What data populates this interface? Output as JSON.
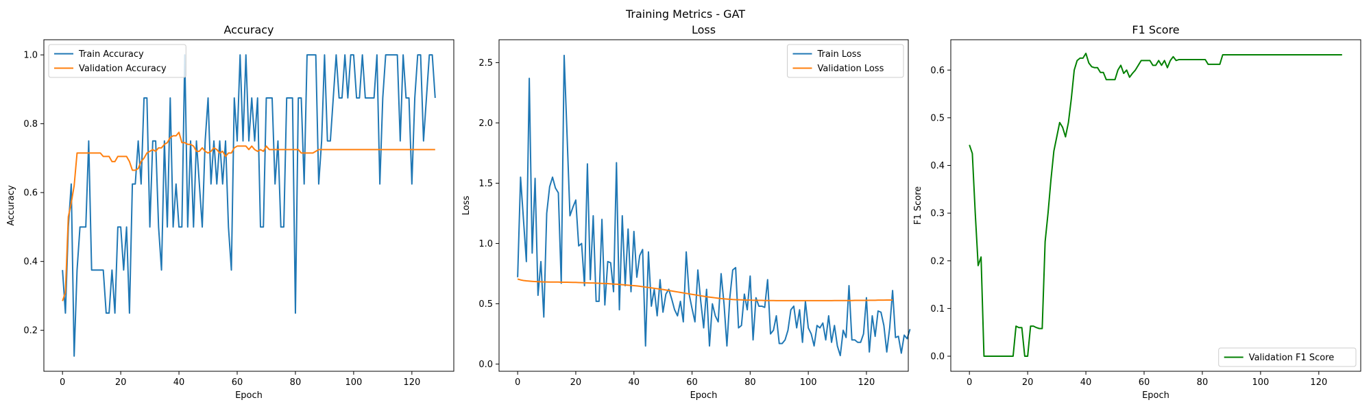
{
  "figure": {
    "suptitle": "Training Metrics - GAT"
  },
  "colors": {
    "blue": "#1f77b4",
    "orange": "#ff7f0e",
    "green": "#008000"
  },
  "chart_data": [
    {
      "type": "line",
      "title": "Accuracy",
      "xlabel": "Epoch",
      "ylabel": "Accuracy",
      "xlim": [
        -6.4,
        134.4
      ],
      "ylim": [
        0.081,
        1.044
      ],
      "xticks": [
        0,
        20,
        40,
        60,
        80,
        100,
        120
      ],
      "yticks": [
        0.2,
        0.4,
        0.6,
        0.8,
        1.0
      ],
      "ytick_labels": [
        "0.2",
        "0.4",
        "0.6",
        "0.8",
        "1.0"
      ],
      "legend": "top-left",
      "series": [
        {
          "name": "Train Accuracy",
          "color": "#1f77b4",
          "values": [
            0.375,
            0.25,
            0.5,
            0.625,
            0.125,
            0.375,
            0.5,
            0.5,
            0.5,
            0.75,
            0.375,
            0.375,
            0.375,
            0.375,
            0.375,
            0.25,
            0.25,
            0.375,
            0.25,
            0.5,
            0.5,
            0.375,
            0.5,
            0.25,
            0.625,
            0.625,
            0.75,
            0.625,
            0.875,
            0.875,
            0.5,
            0.75,
            0.75,
            0.5,
            0.375,
            0.75,
            0.5,
            0.875,
            0.5,
            0.625,
            0.5,
            0.5,
            1.0,
            0.5,
            0.75,
            0.5,
            0.75,
            0.625,
            0.5,
            0.75,
            0.875,
            0.625,
            0.75,
            0.625,
            0.75,
            0.625,
            0.75,
            0.5,
            0.375,
            0.875,
            0.75,
            1.0,
            0.75,
            1.0,
            0.75,
            0.875,
            0.75,
            0.875,
            0.5,
            0.5,
            0.875,
            0.875,
            0.875,
            0.625,
            0.75,
            0.5,
            0.5,
            0.875,
            0.875,
            0.875,
            0.25,
            0.875,
            0.875,
            0.625,
            1.0,
            1.0,
            1.0,
            1.0,
            0.625,
            0.75,
            1.0,
            0.75,
            0.75,
            0.875,
            1.0,
            0.875,
            0.875,
            1.0,
            0.875,
            1.0,
            1.0,
            0.875,
            0.875,
            1.0,
            0.875,
            0.875,
            0.875,
            0.875,
            1.0,
            0.625,
            0.875,
            1.0,
            1.0,
            1.0,
            1.0,
            1.0,
            0.75,
            1.0,
            0.875,
            0.875,
            0.625,
            0.875,
            1.0,
            1.0,
            0.75,
            0.875,
            1.0,
            1.0,
            0.875
          ]
        },
        {
          "name": "Validation Accuracy",
          "color": "#ff7f0e",
          "values": [
            0.285,
            0.31,
            0.53,
            0.57,
            0.62,
            0.715,
            0.715,
            0.715,
            0.715,
            0.715,
            0.715,
            0.715,
            0.715,
            0.715,
            0.705,
            0.705,
            0.705,
            0.69,
            0.69,
            0.705,
            0.705,
            0.705,
            0.705,
            0.69,
            0.665,
            0.665,
            0.67,
            0.69,
            0.7,
            0.715,
            0.72,
            0.725,
            0.72,
            0.73,
            0.73,
            0.74,
            0.745,
            0.76,
            0.765,
            0.765,
            0.775,
            0.745,
            0.745,
            0.74,
            0.74,
            0.735,
            0.72,
            0.72,
            0.73,
            0.72,
            0.715,
            0.72,
            0.73,
            0.725,
            0.715,
            0.72,
            0.705,
            0.715,
            0.715,
            0.73,
            0.735,
            0.735,
            0.735,
            0.735,
            0.725,
            0.735,
            0.725,
            0.72,
            0.725,
            0.72,
            0.735,
            0.725,
            0.725,
            0.725,
            0.725,
            0.725,
            0.725,
            0.725,
            0.725,
            0.725,
            0.725,
            0.725,
            0.715,
            0.715,
            0.715,
            0.715,
            0.715,
            0.72,
            0.725,
            0.725,
            0.725,
            0.725,
            0.725,
            0.725,
            0.725,
            0.725,
            0.725,
            0.725,
            0.725,
            0.725,
            0.725,
            0.725,
            0.725,
            0.725,
            0.725,
            0.725,
            0.725,
            0.725,
            0.725,
            0.725,
            0.725,
            0.725,
            0.725,
            0.725,
            0.725,
            0.725,
            0.725,
            0.725,
            0.725,
            0.725,
            0.725,
            0.725,
            0.725,
            0.725,
            0.725,
            0.725,
            0.725,
            0.725,
            0.725
          ]
        }
      ]
    },
    {
      "type": "line",
      "title": "Loss",
      "xlabel": "Epoch",
      "ylabel": "Loss",
      "xlim": [
        -6.4,
        134.4
      ],
      "ylim": [
        -0.06,
        2.69
      ],
      "xticks": [
        0,
        20,
        40,
        60,
        80,
        100,
        120
      ],
      "yticks": [
        0.0,
        0.5,
        1.0,
        1.5,
        2.0,
        2.5
      ],
      "ytick_labels": [
        "0.0",
        "0.5",
        "1.0",
        "1.5",
        "2.0",
        "2.5"
      ],
      "legend": "top-right",
      "series": [
        {
          "name": "Train Loss",
          "color": "#1f77b4",
          "values": [
            0.72,
            1.55,
            1.2,
            0.85,
            2.37,
            0.92,
            1.54,
            0.57,
            0.85,
            0.39,
            1.25,
            1.47,
            1.55,
            1.46,
            1.42,
            0.67,
            2.56,
            1.9,
            1.23,
            1.3,
            1.36,
            0.98,
            1.0,
            0.65,
            1.66,
            0.7,
            1.23,
            0.52,
            0.52,
            1.2,
            0.49,
            0.85,
            0.84,
            0.6,
            1.67,
            0.45,
            1.23,
            0.65,
            1.12,
            0.6,
            1.1,
            0.72,
            0.9,
            0.95,
            0.15,
            0.93,
            0.48,
            0.62,
            0.4,
            0.7,
            0.43,
            0.58,
            0.62,
            0.54,
            0.45,
            0.4,
            0.52,
            0.35,
            0.93,
            0.58,
            0.46,
            0.35,
            0.78,
            0.52,
            0.3,
            0.62,
            0.15,
            0.5,
            0.4,
            0.35,
            0.75,
            0.5,
            0.15,
            0.55,
            0.78,
            0.8,
            0.3,
            0.32,
            0.58,
            0.45,
            0.73,
            0.2,
            0.55,
            0.48,
            0.48,
            0.47,
            0.7,
            0.25,
            0.28,
            0.4,
            0.17,
            0.17,
            0.2,
            0.28,
            0.45,
            0.48,
            0.3,
            0.45,
            0.18,
            0.52,
            0.3,
            0.25,
            0.15,
            0.32,
            0.3,
            0.34,
            0.2,
            0.4,
            0.18,
            0.32,
            0.15,
            0.07,
            0.28,
            0.22,
            0.65,
            0.2,
            0.2,
            0.18,
            0.18,
            0.25,
            0.55,
            0.1,
            0.4,
            0.23,
            0.44,
            0.43,
            0.32,
            0.1,
            0.3,
            0.61,
            0.22,
            0.23,
            0.09,
            0.24,
            0.21,
            0.29
          ]
        },
        {
          "name": "Validation Loss",
          "color": "#ff7f0e",
          "values": [
            0.705,
            0.698,
            0.693,
            0.69,
            0.688,
            0.686,
            0.684,
            0.683,
            0.682,
            0.681,
            0.681,
            0.68,
            0.68,
            0.68,
            0.68,
            0.679,
            0.679,
            0.679,
            0.678,
            0.677,
            0.677,
            0.676,
            0.675,
            0.674,
            0.673,
            0.672,
            0.672,
            0.671,
            0.67,
            0.669,
            0.668,
            0.667,
            0.665,
            0.663,
            0.662,
            0.66,
            0.658,
            0.656,
            0.654,
            0.652,
            0.65,
            0.648,
            0.645,
            0.642,
            0.638,
            0.635,
            0.632,
            0.628,
            0.625,
            0.621,
            0.618,
            0.614,
            0.61,
            0.606,
            0.602,
            0.598,
            0.594,
            0.59,
            0.586,
            0.582,
            0.578,
            0.574,
            0.57,
            0.566,
            0.562,
            0.558,
            0.555,
            0.552,
            0.549,
            0.546,
            0.543,
            0.541,
            0.539,
            0.537,
            0.535,
            0.534,
            0.533,
            0.532,
            0.531,
            0.53,
            0.53,
            0.529,
            0.529,
            0.528,
            0.528,
            0.527,
            0.527,
            0.527,
            0.527,
            0.526,
            0.526,
            0.526,
            0.526,
            0.526,
            0.526,
            0.526,
            0.526,
            0.526,
            0.526,
            0.526,
            0.526,
            0.526,
            0.526,
            0.526,
            0.526,
            0.526,
            0.526,
            0.526,
            0.526,
            0.527,
            0.527,
            0.527,
            0.527,
            0.527,
            0.527,
            0.527,
            0.528,
            0.528,
            0.528,
            0.528,
            0.528,
            0.529,
            0.529,
            0.529,
            0.53,
            0.53,
            0.53,
            0.531,
            0.531,
            0.531
          ]
        }
      ]
    },
    {
      "type": "line",
      "title": "F1 Score",
      "xlabel": "Epoch",
      "ylabel": "F1 Score",
      "xlim": [
        -6.4,
        134.4
      ],
      "ylim": [
        -0.0316,
        0.6636
      ],
      "xticks": [
        0,
        20,
        40,
        60,
        80,
        100,
        120
      ],
      "yticks": [
        0.0,
        0.1,
        0.2,
        0.3,
        0.4,
        0.5,
        0.6
      ],
      "ytick_labels": [
        "0.0",
        "0.1",
        "0.2",
        "0.3",
        "0.4",
        "0.5",
        "0.6"
      ],
      "legend": "bottom-right",
      "series": [
        {
          "name": "Validation F1 Score",
          "color": "#008000",
          "values": [
            0.443,
            0.425,
            0.3,
            0.19,
            0.208,
            0.0,
            0.0,
            0.0,
            0.0,
            0.0,
            0.0,
            0.0,
            0.0,
            0.0,
            0.0,
            0.0,
            0.063,
            0.06,
            0.06,
            0.0,
            0.0,
            0.063,
            0.063,
            0.06,
            0.058,
            0.058,
            0.24,
            0.3,
            0.37,
            0.43,
            0.46,
            0.49,
            0.48,
            0.46,
            0.49,
            0.54,
            0.6,
            0.62,
            0.625,
            0.625,
            0.635,
            0.615,
            0.607,
            0.605,
            0.605,
            0.595,
            0.595,
            0.58,
            0.58,
            0.58,
            0.58,
            0.6,
            0.61,
            0.593,
            0.6,
            0.585,
            0.593,
            0.6,
            0.61,
            0.62,
            0.62,
            0.62,
            0.62,
            0.61,
            0.61,
            0.62,
            0.61,
            0.62,
            0.605,
            0.62,
            0.628,
            0.62,
            0.622,
            0.622,
            0.622,
            0.622,
            0.622,
            0.622,
            0.622,
            0.622,
            0.622,
            0.622,
            0.612,
            0.612,
            0.612,
            0.612,
            0.612,
            0.632,
            0.632,
            0.632,
            0.632,
            0.632,
            0.632,
            0.632,
            0.632,
            0.632,
            0.632,
            0.632,
            0.632,
            0.632,
            0.632,
            0.632,
            0.632,
            0.632,
            0.632,
            0.632,
            0.632,
            0.632,
            0.632,
            0.632,
            0.632,
            0.632,
            0.632,
            0.632,
            0.632,
            0.632,
            0.632,
            0.632,
            0.632,
            0.632,
            0.632,
            0.632,
            0.632,
            0.632,
            0.632,
            0.632,
            0.632,
            0.632,
            0.632
          ]
        }
      ]
    }
  ]
}
